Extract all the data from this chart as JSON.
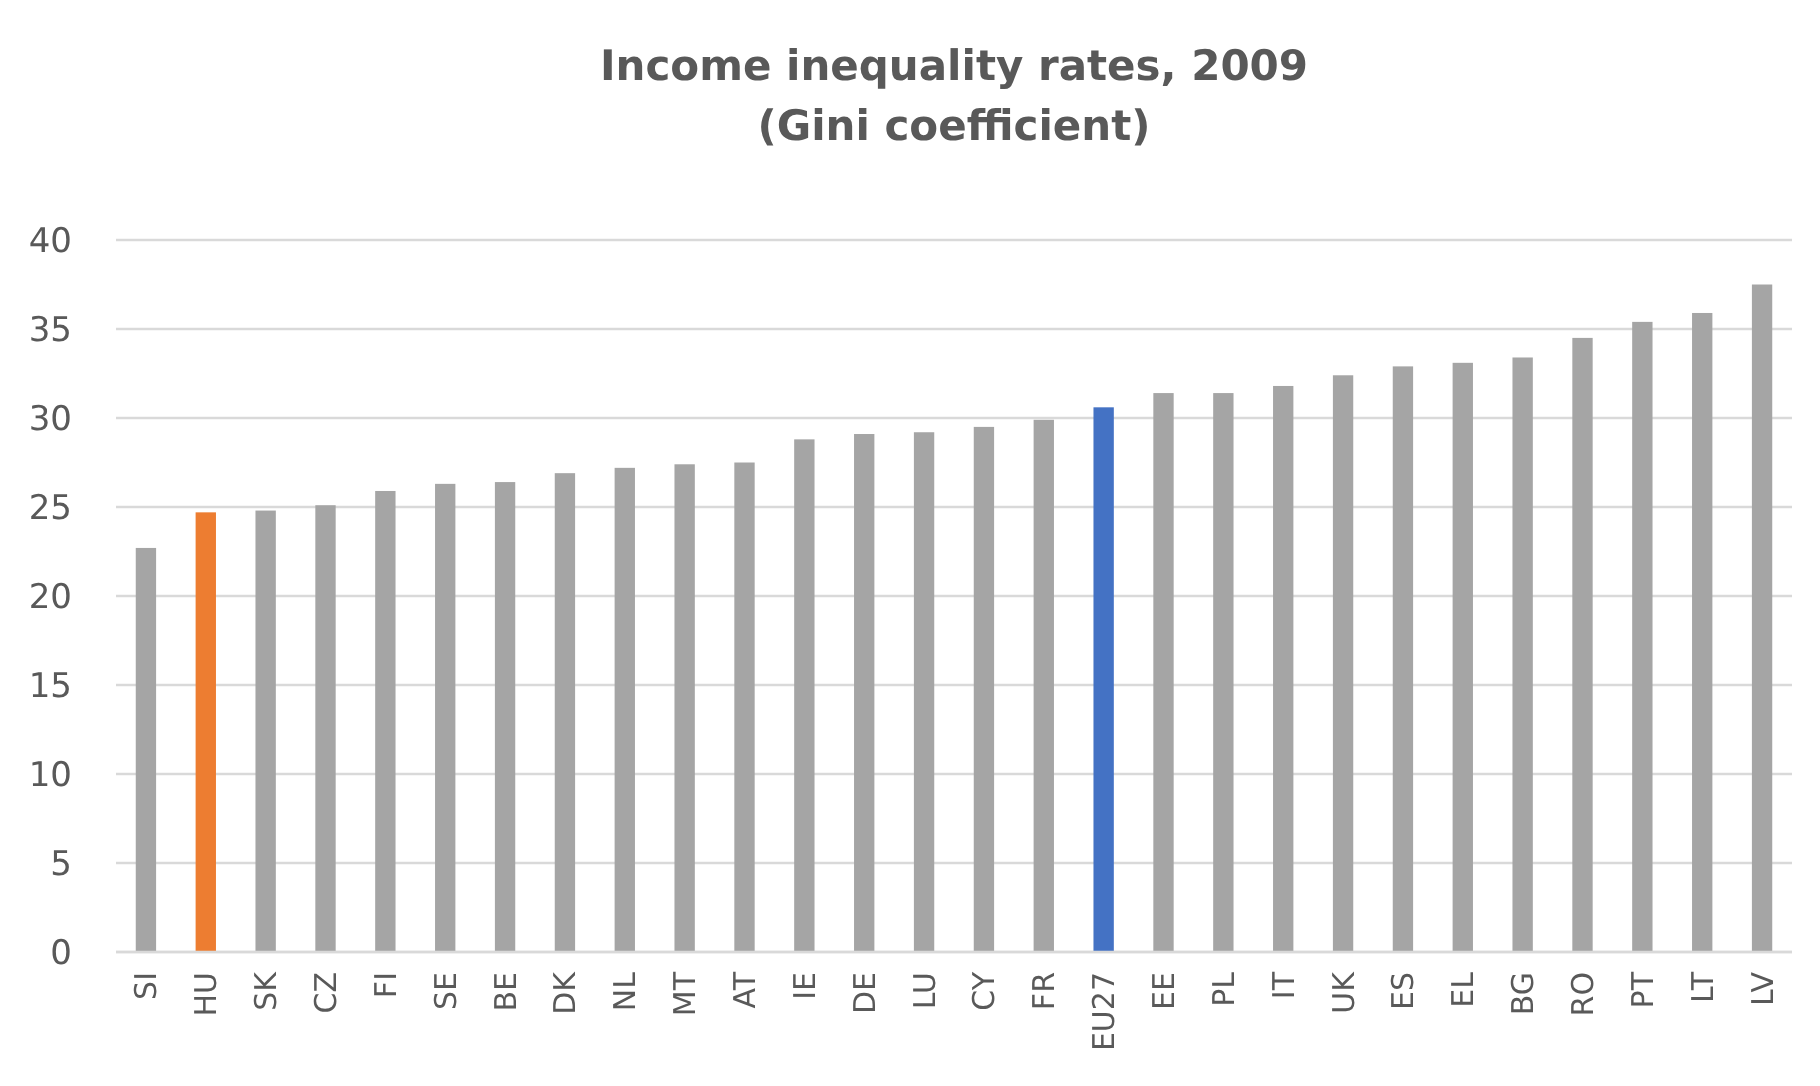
{
  "chart_data": {
    "type": "bar",
    "title": "Income inequality rates, 2009\n(Gini coefficient)",
    "categories": [
      "SI",
      "HU",
      "SK",
      "CZ",
      "FI",
      "SE",
      "BE",
      "DK",
      "NL",
      "MT",
      "AT",
      "IE",
      "DE",
      "LU",
      "CY",
      "FR",
      "EU27",
      "EE",
      "PL",
      "IT",
      "UK",
      "ES",
      "EL",
      "BG",
      "RO",
      "PT",
      "LT",
      "LV"
    ],
    "values": [
      22.7,
      24.7,
      24.8,
      25.1,
      25.9,
      26.3,
      26.4,
      26.9,
      27.2,
      27.4,
      27.5,
      28.8,
      29.1,
      29.2,
      29.5,
      29.9,
      30.6,
      31.4,
      31.4,
      31.8,
      32.4,
      32.9,
      33.1,
      33.4,
      34.5,
      35.4,
      35.9,
      37.5
    ],
    "colors": [
      "#a5a5a5",
      "#ed7d31",
      "#a5a5a5",
      "#a5a5a5",
      "#a5a5a5",
      "#a5a5a5",
      "#a5a5a5",
      "#a5a5a5",
      "#a5a5a5",
      "#a5a5a5",
      "#a5a5a5",
      "#a5a5a5",
      "#a5a5a5",
      "#a5a5a5",
      "#a5a5a5",
      "#a5a5a5",
      "#4472c4",
      "#a5a5a5",
      "#a5a5a5",
      "#a5a5a5",
      "#a5a5a5",
      "#a5a5a5",
      "#a5a5a5",
      "#a5a5a5",
      "#a5a5a5",
      "#a5a5a5",
      "#a5a5a5",
      "#a5a5a5"
    ],
    "ylim": [
      0,
      40
    ],
    "yticks": [
      0,
      5,
      10,
      15,
      20,
      25,
      30,
      35,
      40
    ],
    "grid": "y"
  }
}
